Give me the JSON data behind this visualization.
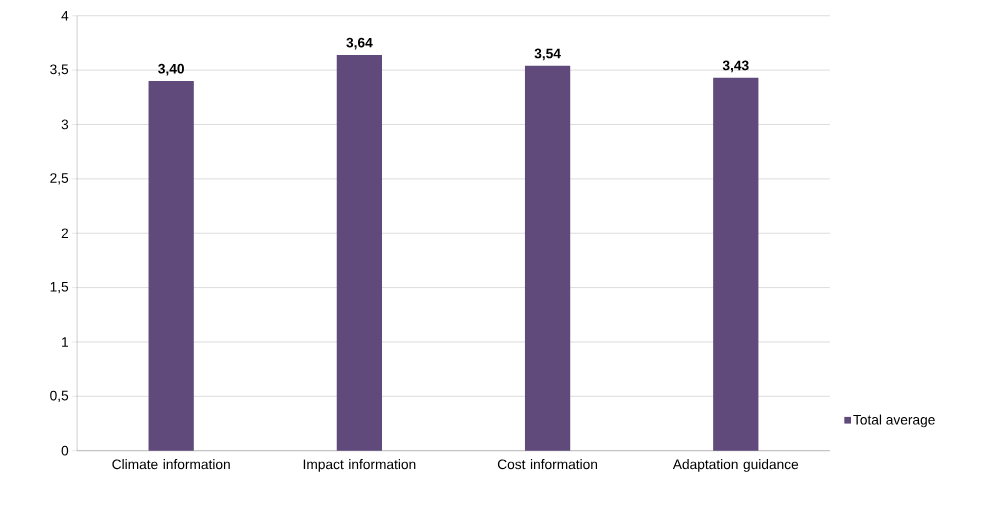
{
  "chart_data": {
    "type": "bar",
    "categories": [
      "Climate information",
      "Impact information",
      "Cost information",
      "Adaptation guidance"
    ],
    "series": [
      {
        "name": "Total average",
        "color": "#604a7b",
        "values": [
          3.4,
          3.64,
          3.54,
          3.43
        ],
        "value_labels": [
          "3,40",
          "3,64",
          "3,54",
          "3,43"
        ]
      }
    ],
    "ylim": [
      0,
      4
    ],
    "yticks": [
      0,
      {
        "value": 0.5,
        "label": "0,5"
      },
      1,
      {
        "value": 1.5,
        "label": "1,5"
      },
      2,
      {
        "value": 2.5,
        "label": "2,5"
      },
      3,
      {
        "value": 3.5,
        "label": "3,5"
      },
      4
    ],
    "grid": "y",
    "legend": "right"
  }
}
